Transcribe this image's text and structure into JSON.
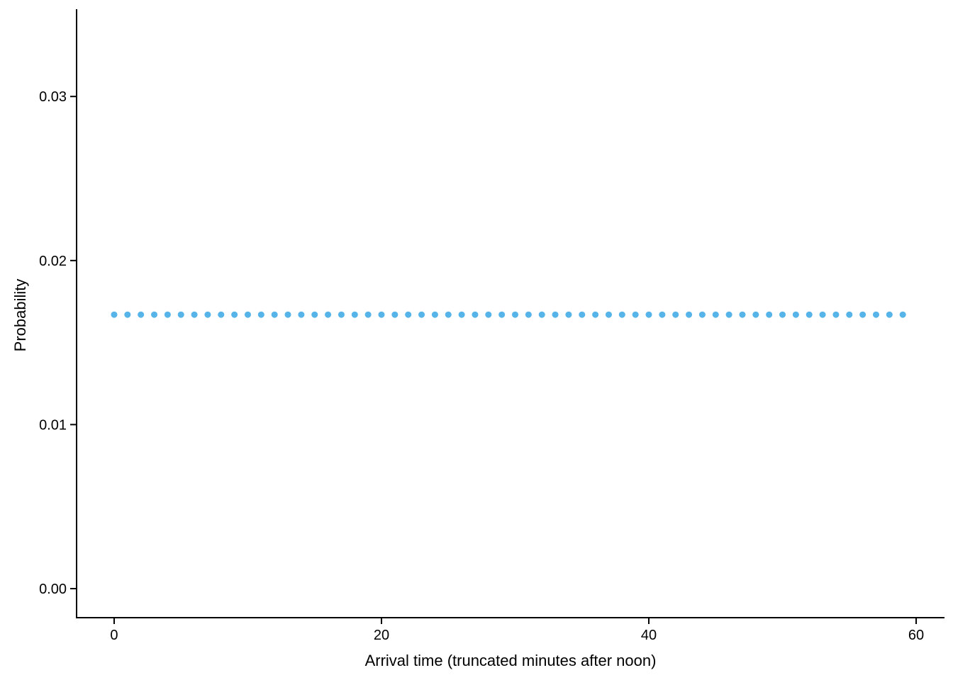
{
  "chart_data": {
    "type": "scatter",
    "title": "",
    "xlabel": "Arrival time (truncated minutes after noon)",
    "ylabel": "Probability",
    "x_tick_values": [
      0,
      20,
      40,
      60
    ],
    "x_tick_labels": [
      "0",
      "20",
      "40",
      "60"
    ],
    "y_tick_values": [
      0,
      0.01,
      0.02,
      0.03
    ],
    "y_tick_labels": [
      "0.00",
      "0.01",
      "0.02",
      "0.03"
    ],
    "xlim": [
      -2.81,
      62.12
    ],
    "ylim": [
      -0.00177,
      0.03532
    ],
    "grid": "off",
    "legend": "none",
    "point_color": "#56B4E9",
    "point_radius_px": 4.5,
    "axis_color": "#000000",
    "series": [
      {
        "name": "uniform-arrival-probability",
        "x": [
          0,
          1,
          2,
          3,
          4,
          5,
          6,
          7,
          8,
          9,
          10,
          11,
          12,
          13,
          14,
          15,
          16,
          17,
          18,
          19,
          20,
          21,
          22,
          23,
          24,
          25,
          26,
          27,
          28,
          29,
          30,
          31,
          32,
          33,
          34,
          35,
          36,
          37,
          38,
          39,
          40,
          41,
          42,
          43,
          44,
          45,
          46,
          47,
          48,
          49,
          50,
          51,
          52,
          53,
          54,
          55,
          56,
          57,
          58,
          59
        ],
        "y_value": 0.0167
      }
    ]
  }
}
